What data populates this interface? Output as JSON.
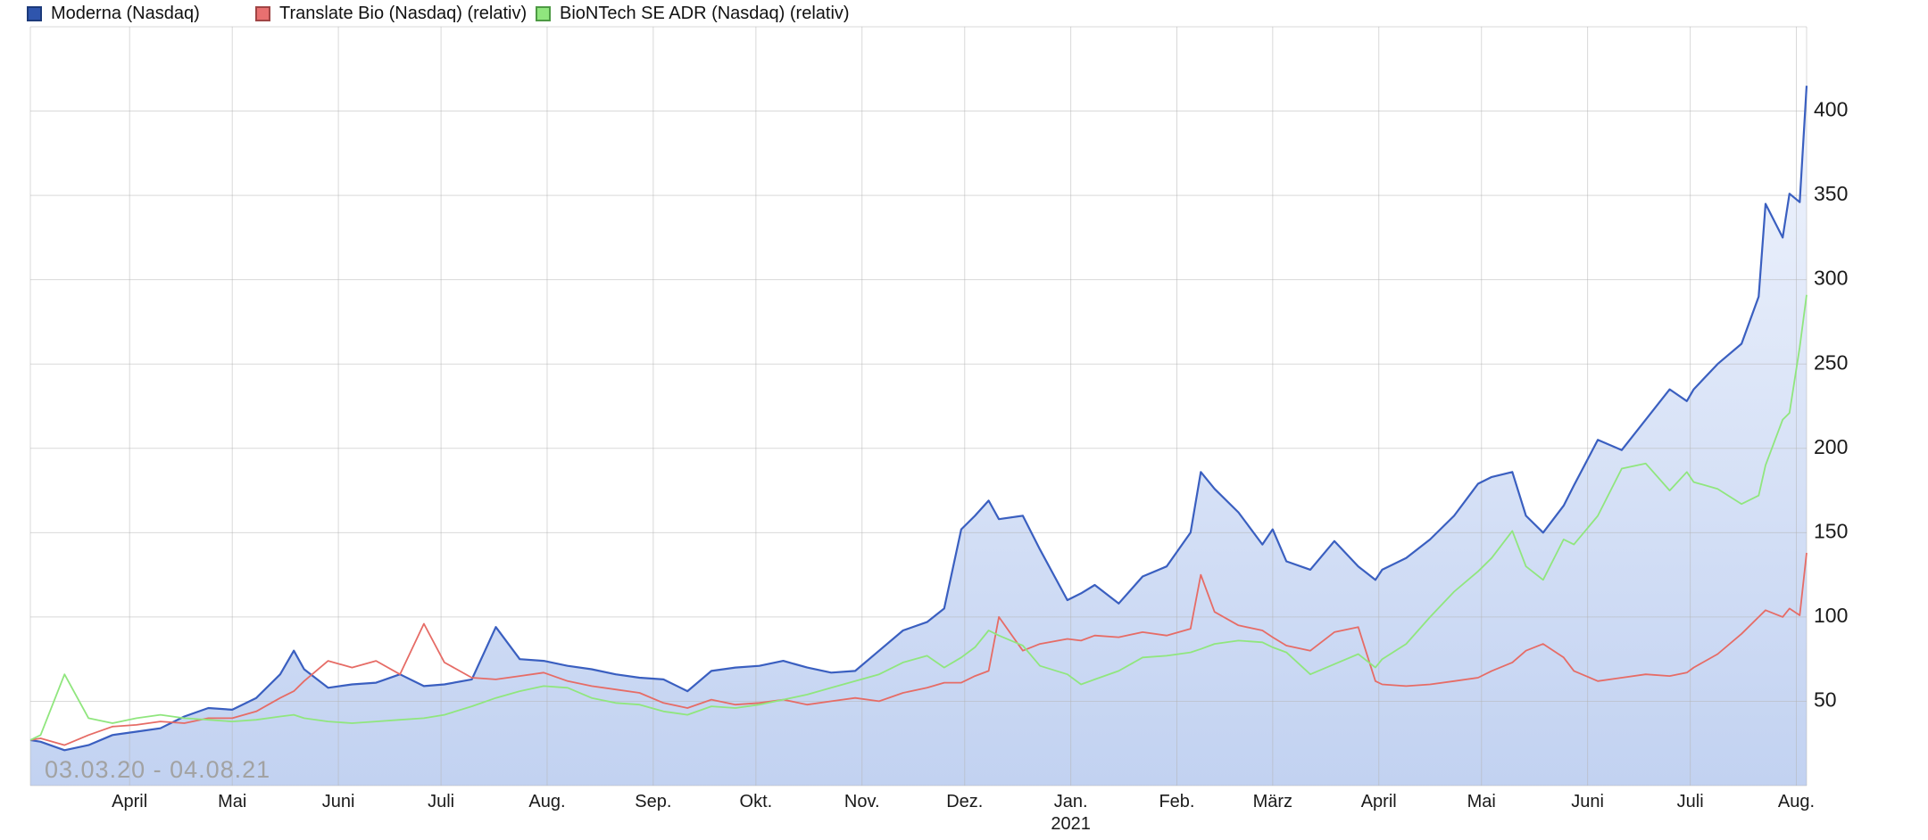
{
  "legend": {
    "items": [
      {
        "label": "Moderna (Nasdaq)",
        "color": "#2f55ad",
        "border": "#1c3a7a"
      },
      {
        "label": "Translate Bio (Nasdaq) (relativ)",
        "color": "#e87070",
        "border": "#a04545"
      },
      {
        "label": "BioNTech SE ADR (Nasdaq) (relativ)",
        "color": "#90e67e",
        "border": "#4d9a44"
      }
    ]
  },
  "caption": "03.03.20 - 04.08.21",
  "chart_data": {
    "type": "line",
    "title": "",
    "date_range": "03.03.20 - 04.08.21",
    "x_start": "2020-03-03",
    "x_end": "2021-08-04",
    "grid": true,
    "legend_position": "top",
    "x": [
      "2020-03-03",
      "2020-03-06",
      "2020-03-13",
      "2020-03-20",
      "2020-03-27",
      "2020-04-03",
      "2020-04-10",
      "2020-04-17",
      "2020-04-24",
      "2020-05-01",
      "2020-05-08",
      "2020-05-15",
      "2020-05-19",
      "2020-05-22",
      "2020-05-29",
      "2020-06-05",
      "2020-06-12",
      "2020-06-19",
      "2020-06-26",
      "2020-07-02",
      "2020-07-10",
      "2020-07-17",
      "2020-07-24",
      "2020-07-31",
      "2020-08-07",
      "2020-08-14",
      "2020-08-21",
      "2020-08-28",
      "2020-09-04",
      "2020-09-11",
      "2020-09-18",
      "2020-09-25",
      "2020-10-02",
      "2020-10-09",
      "2020-10-16",
      "2020-10-23",
      "2020-10-30",
      "2020-11-06",
      "2020-11-13",
      "2020-11-20",
      "2020-11-25",
      "2020-11-30",
      "2020-12-04",
      "2020-12-08",
      "2020-12-11",
      "2020-12-18",
      "2020-12-23",
      "2020-12-31",
      "2021-01-04",
      "2021-01-08",
      "2021-01-15",
      "2021-01-22",
      "2021-01-29",
      "2021-02-05",
      "2021-02-08",
      "2021-02-12",
      "2021-02-19",
      "2021-02-26",
      "2021-03-01",
      "2021-03-05",
      "2021-03-12",
      "2021-03-19",
      "2021-03-26",
      "2021-03-31",
      "2021-04-02",
      "2021-04-09",
      "2021-04-16",
      "2021-04-23",
      "2021-04-30",
      "2021-05-04",
      "2021-05-10",
      "2021-05-14",
      "2021-05-19",
      "2021-05-25",
      "2021-05-28",
      "2021-06-04",
      "2021-06-11",
      "2021-06-18",
      "2021-06-25",
      "2021-06-30",
      "2021-07-02",
      "2021-07-09",
      "2021-07-16",
      "2021-07-21",
      "2021-07-23",
      "2021-07-28",
      "2021-07-30",
      "2021-08-02",
      "2021-08-04"
    ],
    "series": [
      {
        "name": "Moderna (Nasdaq)",
        "color": "#3a5fc0",
        "area_fill": true,
        "fill_top": "#f0f4fd",
        "fill_bottom": "#c2d2f1",
        "values": [
          27,
          26,
          21,
          24,
          30,
          32,
          34,
          41,
          46,
          45,
          52,
          66,
          80,
          69,
          58,
          60,
          61,
          66,
          59,
          60,
          63,
          94,
          75,
          74,
          71,
          69,
          66,
          64,
          63,
          56,
          68,
          70,
          71,
          74,
          70,
          67,
          68,
          80,
          92,
          97,
          105,
          152,
          160,
          169,
          158,
          160,
          140,
          110,
          114,
          119,
          108,
          124,
          130,
          150,
          186,
          176,
          162,
          143,
          152,
          133,
          128,
          145,
          130,
          122,
          128,
          135,
          146,
          160,
          179,
          183,
          186,
          160,
          150,
          166,
          178,
          205,
          199,
          217,
          235,
          228,
          235,
          250,
          262,
          290,
          345,
          325,
          351,
          346,
          415
        ]
      },
      {
        "name": "Translate Bio (Nasdaq) (relativ)",
        "color": "#e66c66",
        "area_fill": false,
        "values": [
          27,
          28,
          24,
          30,
          35,
          36,
          38,
          37,
          40,
          40,
          44,
          52,
          56,
          62,
          74,
          70,
          74,
          66,
          96,
          73,
          64,
          63,
          65,
          67,
          62,
          59,
          57,
          55,
          49,
          46,
          51,
          48,
          49,
          51,
          48,
          50,
          52,
          50,
          55,
          58,
          61,
          61,
          65,
          68,
          100,
          80,
          84,
          87,
          86,
          89,
          88,
          91,
          89,
          93,
          125,
          103,
          95,
          92,
          88,
          83,
          80,
          91,
          94,
          62,
          60,
          59,
          60,
          62,
          64,
          68,
          73,
          80,
          84,
          76,
          68,
          62,
          64,
          66,
          65,
          67,
          70,
          78,
          90,
          100,
          104,
          100,
          105,
          101,
          138
        ]
      },
      {
        "name": "BioNTech SE ADR (Nasdaq) (relativ)",
        "color": "#90e67e",
        "area_fill": false,
        "values": [
          27,
          30,
          66,
          40,
          37,
          40,
          42,
          40,
          39,
          38,
          39,
          41,
          42,
          40,
          38,
          37,
          38,
          39,
          40,
          42,
          47,
          52,
          56,
          59,
          58,
          52,
          49,
          48,
          44,
          42,
          47,
          46,
          48,
          51,
          54,
          58,
          62,
          66,
          73,
          77,
          70,
          76,
          82,
          92,
          89,
          83,
          71,
          66,
          60,
          63,
          68,
          76,
          77,
          79,
          81,
          84,
          86,
          85,
          82,
          79,
          66,
          72,
          78,
          70,
          75,
          84,
          100,
          115,
          127,
          135,
          151,
          130,
          122,
          146,
          143,
          160,
          188,
          191,
          175,
          186,
          180,
          176,
          167,
          172,
          190,
          217,
          221,
          260,
          291
        ]
      }
    ],
    "x_axis": {
      "months": [
        {
          "label": "April",
          "date": "2020-04-01"
        },
        {
          "label": "Mai",
          "date": "2020-05-01"
        },
        {
          "label": "Juni",
          "date": "2020-06-01"
        },
        {
          "label": "Juli",
          "date": "2020-07-01"
        },
        {
          "label": "Aug.",
          "date": "2020-08-01"
        },
        {
          "label": "Sep.",
          "date": "2020-09-01"
        },
        {
          "label": "Okt.",
          "date": "2020-10-01"
        },
        {
          "label": "Nov.",
          "date": "2020-11-01"
        },
        {
          "label": "Dez.",
          "date": "2020-12-01"
        },
        {
          "label": "Jan.",
          "date": "2021-01-01"
        },
        {
          "label": "Feb.",
          "date": "2021-02-01"
        },
        {
          "label": "März",
          "date": "2021-03-01"
        },
        {
          "label": "April",
          "date": "2021-04-01"
        },
        {
          "label": "Mai",
          "date": "2021-05-01"
        },
        {
          "label": "Juni",
          "date": "2021-06-01"
        },
        {
          "label": "Juli",
          "date": "2021-07-01"
        },
        {
          "label": "Aug.",
          "date": "2021-08-01"
        }
      ],
      "year_label": {
        "text": "2021",
        "under_date": "2021-01-01"
      }
    },
    "y_axis": {
      "side": "right",
      "ticks": [
        50,
        100,
        150,
        200,
        250,
        300,
        350,
        400
      ],
      "range": [
        0,
        450
      ]
    },
    "grid_color": "#e3e3e3",
    "axis_text_color": "#1a1a1a"
  }
}
